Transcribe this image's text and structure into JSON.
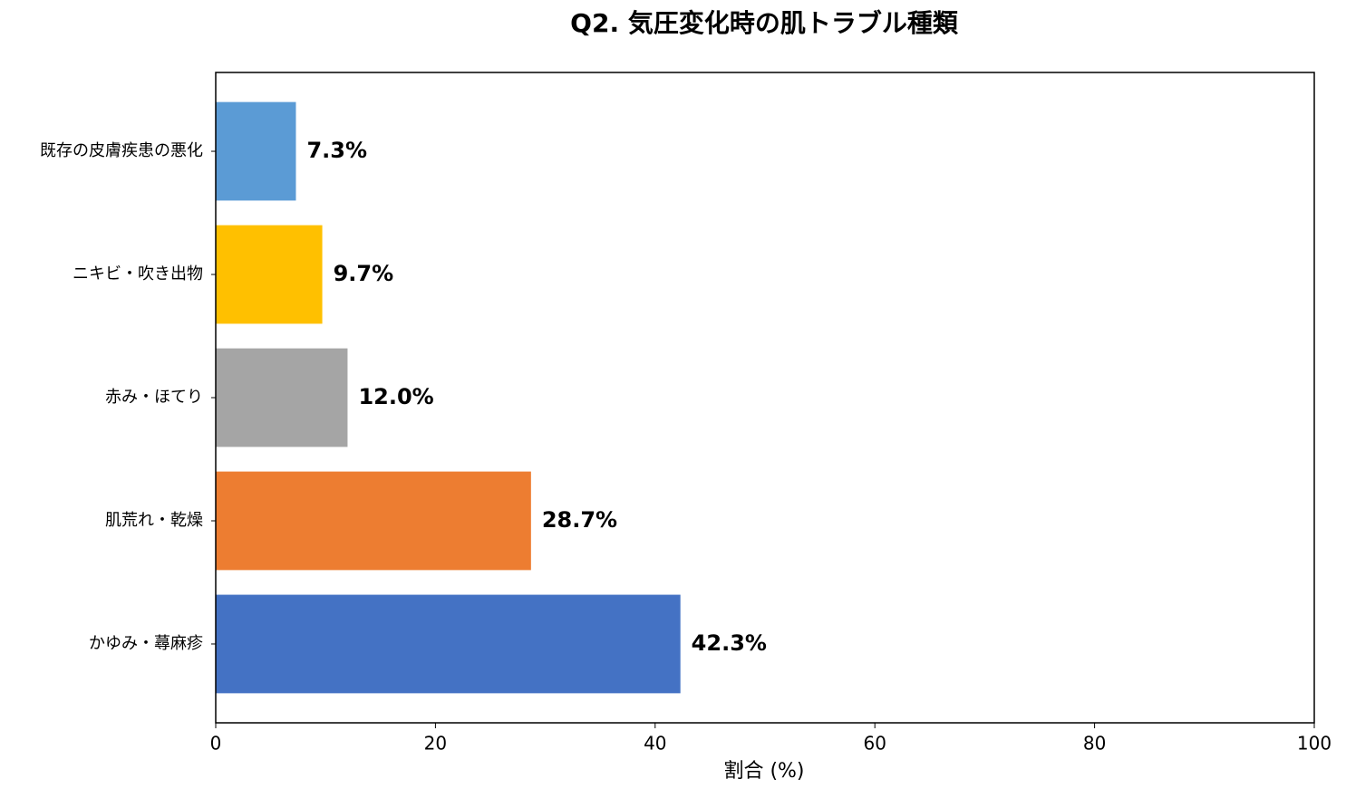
{
  "chart_data": {
    "type": "barh",
    "title": "Q2. 気圧変化時の肌トラブル種類",
    "xlabel": "割合 (%)",
    "categories": [
      "かゆみ・蕁麻疹",
      "肌荒れ・乾燥",
      "赤み・ほてり",
      "ニキビ・吹き出物",
      "既存の皮膚疾患の悪化"
    ],
    "values": [
      42.3,
      28.7,
      12.0,
      9.7,
      7.3
    ],
    "value_labels": [
      "42.3%",
      "28.7%",
      "12.0%",
      "9.7%",
      "7.3%"
    ],
    "colors": [
      "#4472c4",
      "#ed7d31",
      "#a5a5a5",
      "#ffc000",
      "#5b9bd5"
    ],
    "xlim": [
      0,
      100
    ],
    "xticks": [
      0,
      20,
      40,
      60,
      80,
      100
    ],
    "grid": false
  }
}
